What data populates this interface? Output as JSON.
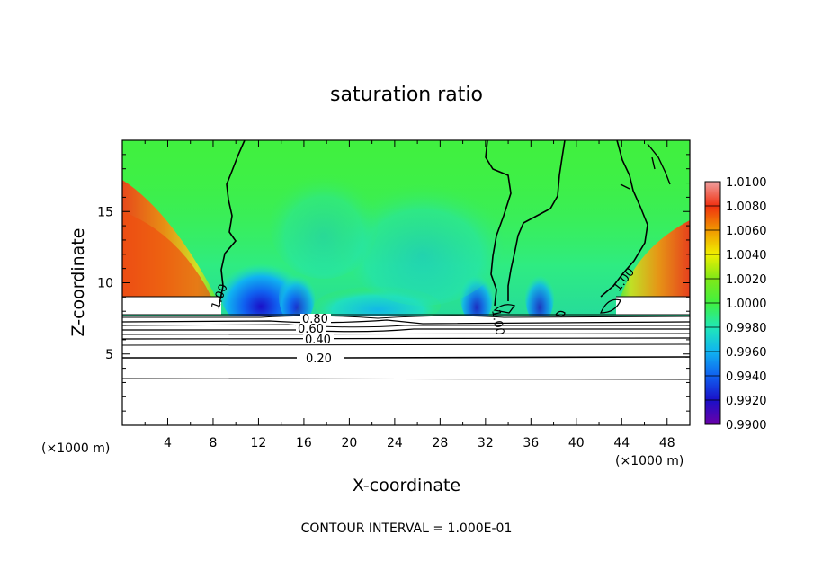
{
  "chart_data": {
    "type": "heatmap",
    "title": "saturation ratio",
    "xlabel": "X-coordinate",
    "ylabel": "Z-coordinate",
    "x_unit_label": "(×1000 m)",
    "y_unit_label": "(×1000 m)",
    "xlim": [
      0,
      50
    ],
    "ylim": [
      0,
      20
    ],
    "x_ticks": [
      "4",
      "8",
      "12",
      "16",
      "20",
      "24",
      "28",
      "32",
      "36",
      "40",
      "44",
      "48"
    ],
    "y_ticks": [
      "5",
      "10",
      "15"
    ],
    "colorbar": {
      "range": [
        0.99,
        1.01
      ],
      "labels": [
        "1.0100",
        "1.0080",
        "1.0060",
        "1.0040",
        "1.0020",
        "1.0000",
        "0.9980",
        "0.9960",
        "0.9940",
        "0.9920",
        "0.9900"
      ],
      "colors": [
        "#6a00a8",
        "#1a10c8",
        "#1060f0",
        "#10b4f0",
        "#20e8b8",
        "#40f040",
        "#80e818",
        "#f0f000",
        "#f09800",
        "#f03010",
        "#f0a0a0"
      ]
    },
    "contour_labels": [
      "0.80",
      "0.60",
      "0.40",
      "0.20",
      "1.00",
      "1.00",
      "1.00"
    ],
    "footer": "CONTOUR INTERVAL = 1.000E-01"
  }
}
